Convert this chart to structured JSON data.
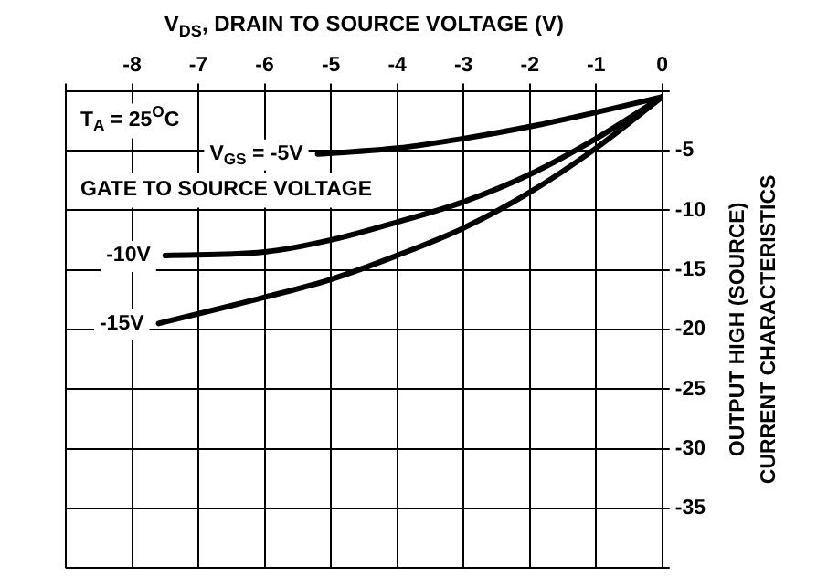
{
  "chart_data": {
    "type": "line",
    "xlabel": "V$_{DS}$, DRAIN TO SOURCE VOLTAGE (V)",
    "ylabel": "OUTPUT HIGH (SOURCE)\nCURRENT CHARACTERISTICS",
    "annotations": [
      "T$_{A}$ = 25$^{O}$C",
      "GATE TO SOURCE VOLTAGE"
    ],
    "series": [
      {
        "name": "V$_{GS}$ = -5V",
        "color": "#000000",
        "x": [
          -5.2,
          -4,
          -3,
          -2,
          -1,
          0
        ],
        "values": [
          -5.3,
          -4.8,
          -4,
          -3,
          -1.8,
          -0.5
        ]
      },
      {
        "name": "-10V",
        "color": "#000000",
        "x": [
          -7.5,
          -6,
          -5,
          -4,
          -3,
          -2,
          -1,
          0
        ],
        "values": [
          -13.8,
          -13.5,
          -12.5,
          -11,
          -9.3,
          -7,
          -4,
          -0.5
        ]
      },
      {
        "name": "-15V",
        "color": "#000000",
        "x": [
          -7.6,
          -6,
          -5,
          -4,
          -3,
          -2,
          -1,
          0
        ],
        "values": [
          -19.5,
          -17.3,
          -15.8,
          -13.8,
          -11.5,
          -8.5,
          -4.8,
          -0.5
        ]
      }
    ],
    "xlim": [
      -9,
      0
    ],
    "xticks": [
      {
        "value": -9,
        "label": null
      },
      -8,
      -7,
      -6,
      -5,
      -4,
      -3,
      -2,
      -1,
      0
    ],
    "ylim": [
      -40,
      0
    ],
    "yticks": [
      {
        "value": -40,
        "label": null
      },
      -35,
      -30,
      -25,
      -20,
      -15,
      -10,
      -5,
      {
        "value": 0,
        "label": null
      }
    ],
    "grid": true,
    "legend": false,
    "marker": "none",
    "line_style": "solid"
  }
}
